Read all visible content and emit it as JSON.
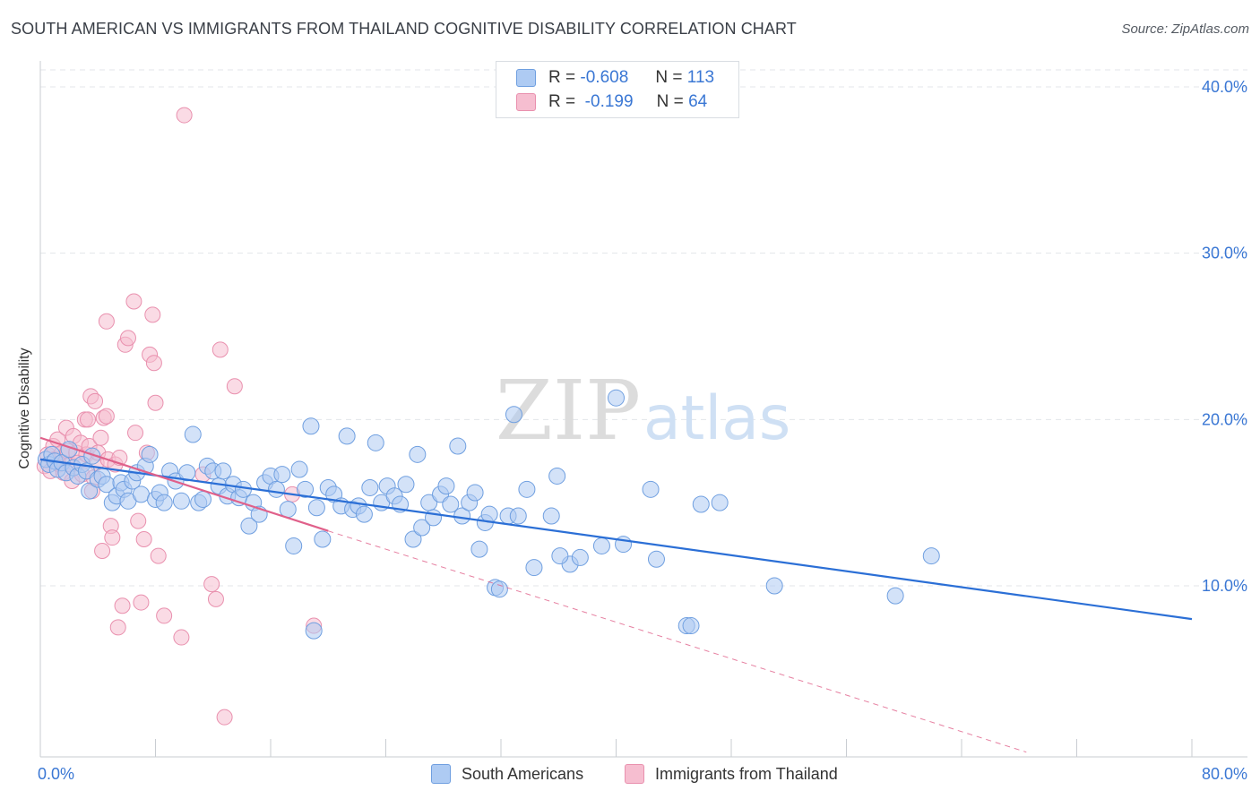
{
  "title": "SOUTH AMERICAN VS IMMIGRANTS FROM THAILAND COGNITIVE DISABILITY CORRELATION CHART",
  "source": "Source: ZipAtlas.com",
  "watermark": {
    "zip": "ZIP",
    "atlas": "atlas"
  },
  "legend_top": [
    {
      "r_label": "R =",
      "r_value": "-0.608",
      "n_label": "N =",
      "n_value": "113"
    },
    {
      "r_label": "R =",
      "r_value": "-0.199",
      "n_label": "N =",
      "n_value": "64"
    }
  ],
  "colors": {
    "blue_fill": "#aecbf3",
    "blue_stroke": "#6f9fe0",
    "blue_line": "#2b6fd6",
    "pink_fill": "#f6bed0",
    "pink_stroke": "#e990ae",
    "pink_line": "#e0608a",
    "axis_text": "#3a77d4",
    "grid": "#e3e6ea"
  },
  "chart_data": {
    "type": "scatter",
    "title": "SOUTH AMERICAN VS IMMIGRANTS FROM THAILAND COGNITIVE DISABILITY CORRELATION CHART",
    "xlabel": "",
    "ylabel": "Cognitive Disability",
    "xlim": [
      0,
      80
    ],
    "ylim": [
      0,
      40
    ],
    "x_tick_labels": [
      "0.0%",
      "80.0%"
    ],
    "y_ticks": [
      10,
      20,
      30,
      40
    ],
    "y_tick_labels": [
      "10.0%",
      "20.0%",
      "30.0%",
      "40.0%"
    ],
    "grid": true,
    "legend_position": "bottom",
    "series": [
      {
        "name": "South Americans",
        "r": -0.608,
        "n": 113,
        "trend": {
          "x0": 0,
          "y0": 17.6,
          "x1": 80,
          "y1": 8.0
        },
        "points": [
          [
            0.4,
            17.6
          ],
          [
            0.6,
            17.3
          ],
          [
            0.8,
            17.9
          ],
          [
            1.0,
            17.5
          ],
          [
            1.2,
            17.0
          ],
          [
            1.5,
            17.4
          ],
          [
            1.8,
            16.8
          ],
          [
            2.0,
            18.2
          ],
          [
            2.3,
            17.1
          ],
          [
            2.6,
            16.6
          ],
          [
            2.9,
            17.3
          ],
          [
            3.2,
            16.9
          ],
          [
            3.4,
            15.7
          ],
          [
            3.6,
            17.8
          ],
          [
            4.0,
            16.4
          ],
          [
            4.3,
            16.6
          ],
          [
            4.6,
            16.1
          ],
          [
            5.0,
            15.0
          ],
          [
            5.3,
            15.4
          ],
          [
            5.6,
            16.2
          ],
          [
            5.8,
            15.8
          ],
          [
            6.1,
            15.1
          ],
          [
            6.4,
            16.3
          ],
          [
            6.7,
            16.8
          ],
          [
            7.0,
            15.5
          ],
          [
            7.3,
            17.2
          ],
          [
            7.6,
            17.9
          ],
          [
            8.0,
            15.2
          ],
          [
            8.3,
            15.6
          ],
          [
            8.6,
            15.0
          ],
          [
            9.0,
            16.9
          ],
          [
            9.4,
            16.3
          ],
          [
            9.8,
            15.1
          ],
          [
            10.2,
            16.8
          ],
          [
            10.6,
            19.1
          ],
          [
            11.0,
            15.0
          ],
          [
            11.3,
            15.2
          ],
          [
            11.6,
            17.2
          ],
          [
            12.0,
            16.9
          ],
          [
            12.4,
            16.0
          ],
          [
            12.7,
            16.9
          ],
          [
            13.0,
            15.4
          ],
          [
            13.4,
            16.1
          ],
          [
            13.8,
            15.3
          ],
          [
            14.1,
            15.8
          ],
          [
            14.5,
            13.6
          ],
          [
            14.8,
            15.0
          ],
          [
            15.2,
            14.3
          ],
          [
            15.6,
            16.2
          ],
          [
            16.0,
            16.6
          ],
          [
            16.4,
            15.8
          ],
          [
            16.8,
            16.7
          ],
          [
            17.2,
            14.6
          ],
          [
            17.6,
            12.4
          ],
          [
            18.0,
            17.0
          ],
          [
            18.4,
            15.8
          ],
          [
            18.8,
            19.6
          ],
          [
            19.2,
            14.7
          ],
          [
            19.6,
            12.8
          ],
          [
            20.0,
            15.9
          ],
          [
            20.4,
            15.5
          ],
          [
            20.9,
            14.8
          ],
          [
            21.3,
            19.0
          ],
          [
            21.7,
            14.6
          ],
          [
            22.1,
            14.8
          ],
          [
            22.5,
            14.3
          ],
          [
            22.9,
            15.9
          ],
          [
            23.3,
            18.6
          ],
          [
            23.7,
            15.0
          ],
          [
            24.1,
            16.0
          ],
          [
            24.6,
            15.4
          ],
          [
            25.0,
            14.9
          ],
          [
            25.4,
            16.1
          ],
          [
            25.9,
            12.8
          ],
          [
            26.2,
            17.9
          ],
          [
            26.5,
            13.5
          ],
          [
            27.0,
            15.0
          ],
          [
            27.3,
            14.1
          ],
          [
            27.8,
            15.5
          ],
          [
            28.2,
            16.0
          ],
          [
            28.5,
            14.9
          ],
          [
            29.0,
            18.4
          ],
          [
            29.3,
            14.2
          ],
          [
            29.8,
            15.0
          ],
          [
            30.2,
            15.6
          ],
          [
            30.5,
            12.2
          ],
          [
            30.9,
            13.8
          ],
          [
            31.2,
            14.3
          ],
          [
            31.6,
            9.9
          ],
          [
            31.9,
            9.8
          ],
          [
            32.5,
            14.2
          ],
          [
            32.9,
            20.3
          ],
          [
            33.2,
            14.2
          ],
          [
            33.8,
            15.8
          ],
          [
            34.3,
            11.1
          ],
          [
            35.5,
            14.2
          ],
          [
            35.9,
            16.6
          ],
          [
            36.8,
            11.3
          ],
          [
            37.5,
            11.7
          ],
          [
            39.0,
            12.4
          ],
          [
            40.5,
            12.5
          ],
          [
            42.4,
            15.8
          ],
          [
            42.8,
            11.6
          ],
          [
            40.0,
            21.3
          ],
          [
            44.9,
            7.6
          ],
          [
            45.2,
            7.6
          ],
          [
            45.9,
            14.9
          ],
          [
            47.2,
            15.0
          ],
          [
            51.0,
            10.0
          ],
          [
            59.4,
            9.4
          ],
          [
            61.9,
            11.8
          ],
          [
            19.0,
            7.3
          ],
          [
            36.1,
            11.8
          ]
        ]
      },
      {
        "name": "Immigrants from Thailand",
        "r": -0.199,
        "n": 64,
        "trend_solid": {
          "x0": 0,
          "y0": 18.9,
          "x1": 20,
          "y1": 13.3
        },
        "trend_dashed": {
          "x0": 20,
          "y0": 13.3,
          "x1": 68.5,
          "y1": 0
        },
        "points": [
          [
            0.3,
            17.2
          ],
          [
            0.5,
            17.9
          ],
          [
            0.7,
            16.9
          ],
          [
            0.9,
            18.4
          ],
          [
            1.0,
            17.6
          ],
          [
            1.2,
            18.8
          ],
          [
            1.3,
            17.3
          ],
          [
            1.5,
            18.0
          ],
          [
            1.6,
            16.8
          ],
          [
            1.8,
            19.5
          ],
          [
            1.9,
            18.1
          ],
          [
            2.1,
            17.3
          ],
          [
            2.2,
            16.3
          ],
          [
            2.3,
            19.0
          ],
          [
            2.5,
            18.0
          ],
          [
            2.6,
            17.4
          ],
          [
            2.8,
            18.6
          ],
          [
            2.9,
            16.7
          ],
          [
            3.1,
            20.0
          ],
          [
            3.2,
            17.9
          ],
          [
            3.3,
            20.0
          ],
          [
            3.4,
            18.4
          ],
          [
            3.5,
            21.4
          ],
          [
            3.6,
            15.7
          ],
          [
            3.7,
            16.5
          ],
          [
            3.8,
            21.1
          ],
          [
            3.9,
            17.4
          ],
          [
            4.0,
            18.0
          ],
          [
            4.2,
            18.9
          ],
          [
            4.3,
            12.1
          ],
          [
            4.4,
            20.1
          ],
          [
            4.6,
            20.2
          ],
          [
            4.7,
            17.6
          ],
          [
            4.9,
            13.6
          ],
          [
            4.6,
            25.9
          ],
          [
            5.0,
            12.9
          ],
          [
            5.2,
            17.3
          ],
          [
            5.4,
            7.5
          ],
          [
            5.5,
            17.7
          ],
          [
            5.7,
            8.8
          ],
          [
            5.9,
            24.5
          ],
          [
            6.1,
            24.9
          ],
          [
            6.5,
            27.1
          ],
          [
            6.6,
            19.2
          ],
          [
            6.8,
            13.9
          ],
          [
            7.0,
            9.0
          ],
          [
            7.2,
            12.8
          ],
          [
            7.4,
            18.0
          ],
          [
            7.6,
            23.9
          ],
          [
            7.8,
            26.3
          ],
          [
            7.9,
            23.4
          ],
          [
            8.0,
            21.0
          ],
          [
            8.2,
            11.8
          ],
          [
            8.6,
            8.2
          ],
          [
            9.8,
            6.9
          ],
          [
            11.3,
            16.7
          ],
          [
            11.9,
            10.1
          ],
          [
            12.2,
            9.2
          ],
          [
            12.8,
            2.1
          ],
          [
            12.5,
            24.2
          ],
          [
            13.5,
            22.0
          ],
          [
            17.5,
            15.5
          ],
          [
            19.0,
            7.6
          ],
          [
            10.0,
            38.3
          ]
        ]
      }
    ]
  },
  "bottom_legend": [
    "South Americans",
    "Immigrants from Thailand"
  ]
}
